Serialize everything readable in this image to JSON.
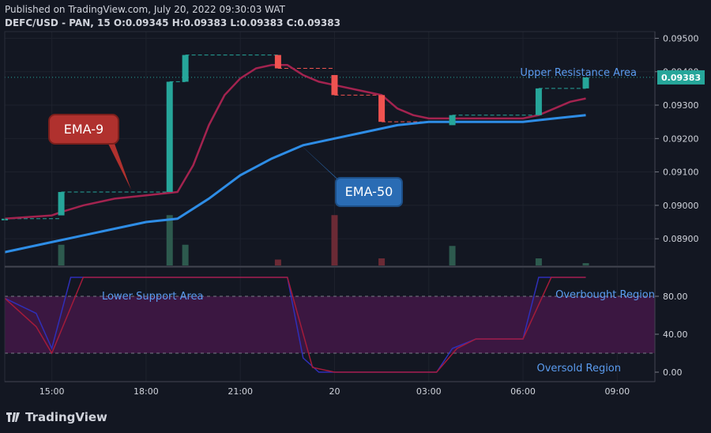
{
  "header": {
    "published": "Published on TradingView.com, July 20, 2022 09:30:03 WAT",
    "symbol_line": "DEFC/USD - PAN, 15  O:0.09345 H:0.09383 L:0.09383 C:0.09383"
  },
  "footer": {
    "brand": "TradingView"
  },
  "colors": {
    "background": "#131722",
    "bull": "#26a69a",
    "bear": "#ef5350",
    "ema9": "#a3234f",
    "ema50": "#2e8de6",
    "stoch_k": "#2f2fb8",
    "stoch_d": "#a31b3a",
    "band": "#3b1741"
  },
  "chart_data": [
    {
      "type": "candlestick",
      "title": "DEFC/USD - PAN, 15",
      "ylim": [
        0.0882,
        0.0952
      ],
      "y_ticks": [
        "0.09500",
        "0.09400",
        "0.09300",
        "0.09200",
        "0.09100",
        "0.09000",
        "0.08900"
      ],
      "x_ticks": [
        "15:00",
        "18:00",
        "21:00",
        "20",
        "03:00",
        "06:00",
        "09:00"
      ],
      "x_tick_hours": [
        15,
        18,
        21,
        24,
        27,
        30,
        33
      ],
      "xlim_hours": [
        13.5,
        34.2
      ],
      "current_price": "0.09383",
      "candles": [
        {
          "t": 13.5,
          "o": 0.0896,
          "c": 0.0896
        },
        {
          "t": 15.3,
          "o": 0.0897,
          "c": 0.0904
        },
        {
          "t": 18.75,
          "o": 0.0904,
          "c": 0.0937
        },
        {
          "t": 19.25,
          "o": 0.0937,
          "c": 0.0945
        },
        {
          "t": 22.2,
          "o": 0.0945,
          "c": 0.0941
        },
        {
          "t": 24.0,
          "o": 0.0939,
          "c": 0.0933
        },
        {
          "t": 25.5,
          "o": 0.0933,
          "c": 0.0925
        },
        {
          "t": 27.75,
          "o": 0.0924,
          "c": 0.0927
        },
        {
          "t": 30.5,
          "o": 0.0927,
          "c": 0.0935
        },
        {
          "t": 32.0,
          "o": 0.0935,
          "c": 0.09383
        }
      ],
      "ema9": [
        [
          13.5,
          0.0896
        ],
        [
          15.0,
          0.0897
        ],
        [
          15.3,
          0.0898
        ],
        [
          16,
          0.09
        ],
        [
          17,
          0.0902
        ],
        [
          18,
          0.0903
        ],
        [
          19,
          0.0904
        ],
        [
          19.5,
          0.0912
        ],
        [
          20,
          0.0924
        ],
        [
          20.5,
          0.0933
        ],
        [
          21,
          0.0938
        ],
        [
          21.5,
          0.0941
        ],
        [
          22,
          0.0942
        ],
        [
          22.5,
          0.0942
        ],
        [
          23,
          0.0939
        ],
        [
          23.5,
          0.0937
        ],
        [
          24,
          0.0936
        ],
        [
          25,
          0.0934
        ],
        [
          25.5,
          0.0933
        ],
        [
          26,
          0.0929
        ],
        [
          26.5,
          0.0927
        ],
        [
          27,
          0.0926
        ],
        [
          28,
          0.0926
        ],
        [
          29,
          0.0926
        ],
        [
          30,
          0.0926
        ],
        [
          30.5,
          0.0927
        ],
        [
          31,
          0.0929
        ],
        [
          31.5,
          0.0931
        ],
        [
          32,
          0.0932
        ]
      ],
      "ema50": [
        [
          13.5,
          0.0886
        ],
        [
          15,
          0.0889
        ],
        [
          16.5,
          0.0892
        ],
        [
          18,
          0.0895
        ],
        [
          19,
          0.0896
        ],
        [
          20,
          0.0902
        ],
        [
          21,
          0.0909
        ],
        [
          22,
          0.0914
        ],
        [
          23,
          0.0918
        ],
        [
          24,
          0.092
        ],
        [
          25,
          0.0922
        ],
        [
          26,
          0.0924
        ],
        [
          27,
          0.0925
        ],
        [
          28,
          0.0925
        ],
        [
          29,
          0.0925
        ],
        [
          30,
          0.0925
        ],
        [
          31,
          0.0926
        ],
        [
          32,
          0.0927
        ]
      ],
      "volume": [
        {
          "t": 15.3,
          "v": 0.35,
          "dir": "up"
        },
        {
          "t": 18.75,
          "v": 0.85,
          "dir": "up"
        },
        {
          "t": 19.25,
          "v": 0.35,
          "dir": "up"
        },
        {
          "t": 22.2,
          "v": 0.1,
          "dir": "down"
        },
        {
          "t": 24.0,
          "v": 0.85,
          "dir": "down"
        },
        {
          "t": 25.5,
          "v": 0.12,
          "dir": "down"
        },
        {
          "t": 27.75,
          "v": 0.33,
          "dir": "up"
        },
        {
          "t": 30.5,
          "v": 0.12,
          "dir": "up"
        },
        {
          "t": 32.0,
          "v": 0.04,
          "dir": "up"
        }
      ],
      "annotations": {
        "ema9_label": "EMA-9",
        "ema50_label": "EMA-50",
        "upper_resistance": "Upper Resistance Area"
      }
    },
    {
      "type": "line",
      "ylim": [
        -10,
        110
      ],
      "y_ticks": [
        "80.00",
        "40.00",
        "0.00"
      ],
      "y_tick_values": [
        80,
        40,
        0
      ],
      "levels": [
        80,
        20
      ],
      "series": [
        {
          "key": "k",
          "values": [
            [
              13.5,
              78
            ],
            [
              14.5,
              62
            ],
            [
              15,
              25
            ],
            [
              15.6,
              100
            ],
            [
              22.5,
              100
            ],
            [
              23,
              15
            ],
            [
              23.5,
              0
            ],
            [
              24.5,
              0
            ],
            [
              27.25,
              0
            ],
            [
              27.75,
              25
            ],
            [
              28.5,
              35
            ],
            [
              30,
              35
            ],
            [
              30.5,
              100
            ],
            [
              32,
              100
            ]
          ]
        },
        {
          "key": "d",
          "values": [
            [
              13.5,
              78
            ],
            [
              14.5,
              48
            ],
            [
              15,
              20
            ],
            [
              16,
              100
            ],
            [
              22.5,
              100
            ],
            [
              23.3,
              5
            ],
            [
              24,
              0
            ],
            [
              27.25,
              0
            ],
            [
              27.9,
              25
            ],
            [
              28.5,
              35
            ],
            [
              30,
              35
            ],
            [
              30.9,
              100
            ],
            [
              32,
              100
            ]
          ]
        }
      ],
      "annotations": {
        "lower_support": "Lower Support Area",
        "overbought": "Overbought Region",
        "oversold": "Oversold Region"
      }
    }
  ]
}
